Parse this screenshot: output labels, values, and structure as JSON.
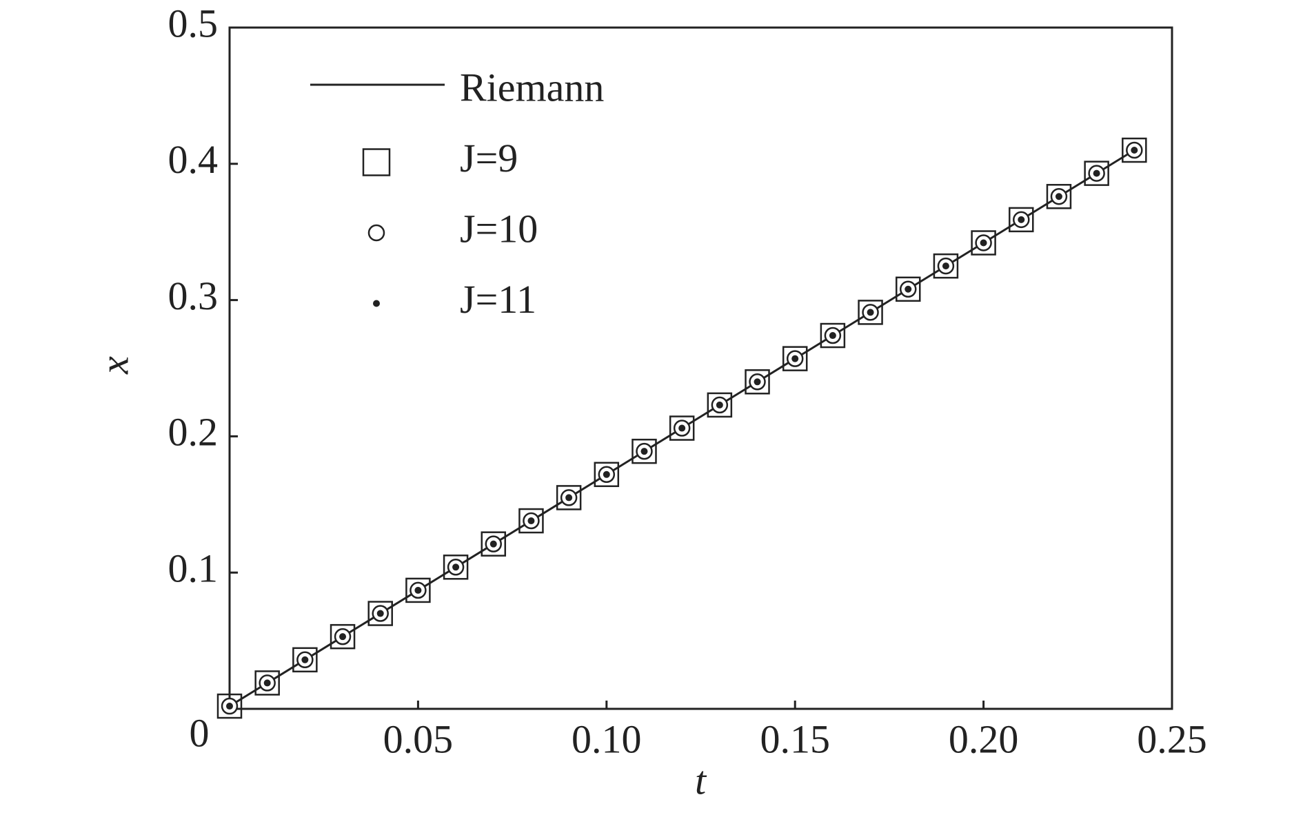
{
  "chart_data": {
    "type": "line",
    "xlabel": "t",
    "ylabel": "x",
    "x": [
      0,
      0.01,
      0.02,
      0.03,
      0.04,
      0.05,
      0.06,
      0.07,
      0.08,
      0.09,
      0.1,
      0.11,
      0.12,
      0.13,
      0.14,
      0.15,
      0.16,
      0.17,
      0.18,
      0.19,
      0.2,
      0.21,
      0.22,
      0.23,
      0.24
    ],
    "series": [
      {
        "name": "Riemann",
        "color": "#222222",
        "style": "line",
        "values": [
          0.002,
          0.019,
          0.036,
          0.053,
          0.07,
          0.087,
          0.104,
          0.121,
          0.138,
          0.155,
          0.172,
          0.189,
          0.206,
          0.223,
          0.24,
          0.257,
          0.274,
          0.291,
          0.308,
          0.325,
          0.342,
          0.359,
          0.376,
          0.393,
          0.41
        ]
      },
      {
        "name": "J=9",
        "color": "#222222",
        "style": "square",
        "values": [
          0.002,
          0.019,
          0.036,
          0.053,
          0.07,
          0.087,
          0.104,
          0.121,
          0.138,
          0.155,
          0.172,
          0.189,
          0.206,
          0.223,
          0.24,
          0.257,
          0.274,
          0.291,
          0.308,
          0.325,
          0.342,
          0.359,
          0.376,
          0.393,
          0.41
        ]
      },
      {
        "name": "J=10",
        "color": "#222222",
        "style": "circle",
        "values": [
          0.002,
          0.019,
          0.036,
          0.053,
          0.07,
          0.087,
          0.104,
          0.121,
          0.138,
          0.155,
          0.172,
          0.189,
          0.206,
          0.223,
          0.24,
          0.257,
          0.274,
          0.291,
          0.308,
          0.325,
          0.342,
          0.359,
          0.376,
          0.393,
          0.41
        ]
      },
      {
        "name": "J=11",
        "color": "#222222",
        "style": "dot",
        "values": [
          0.002,
          0.019,
          0.036,
          0.053,
          0.07,
          0.087,
          0.104,
          0.121,
          0.138,
          0.155,
          0.172,
          0.189,
          0.206,
          0.223,
          0.24,
          0.257,
          0.274,
          0.291,
          0.308,
          0.325,
          0.342,
          0.359,
          0.376,
          0.393,
          0.41
        ]
      }
    ],
    "xlim": [
      0,
      0.25
    ],
    "xticks": [
      0,
      0.05,
      {
        "value": 0.1,
        "label": "0.10"
      },
      0.15,
      {
        "value": 0.2,
        "label": "0.20"
      },
      0.25
    ],
    "ylim": [
      0,
      0.5
    ],
    "yticks": [
      0.1,
      0.2,
      0.3,
      0.4,
      0.5
    ],
    "legend": "upper left",
    "grid": false
  }
}
